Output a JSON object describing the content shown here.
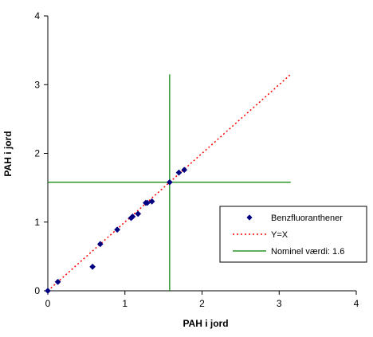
{
  "chart_data": {
    "type": "scatter",
    "xlabel": "PAH i jord",
    "ylabel": "PAH i jord",
    "xlim": [
      0,
      4
    ],
    "ylim": [
      0,
      4
    ],
    "x_ticks": [
      "0",
      "1",
      "2",
      "3",
      "4"
    ],
    "y_ticks": [
      "0",
      "1",
      "2",
      "3",
      "4"
    ],
    "grid": false,
    "legend_position": "bottom-right",
    "series": [
      {
        "name": "Benzfluoranthener",
        "kind": "scatter",
        "marker": "diamond",
        "color": "#000080",
        "points": [
          [
            0.0,
            0.0
          ],
          [
            0.13,
            0.13
          ],
          [
            0.58,
            0.35
          ],
          [
            0.68,
            0.68
          ],
          [
            0.9,
            0.89
          ],
          [
            1.08,
            1.06
          ],
          [
            1.1,
            1.08
          ],
          [
            1.17,
            1.12
          ],
          [
            1.27,
            1.28
          ],
          [
            1.29,
            1.28
          ],
          [
            1.35,
            1.3
          ],
          [
            1.58,
            1.58
          ],
          [
            1.7,
            1.72
          ],
          [
            1.77,
            1.76
          ]
        ]
      },
      {
        "name": "Y=X",
        "kind": "line",
        "style": "dotted",
        "color": "#ff0000",
        "points": [
          [
            0,
            0
          ],
          [
            3.15,
            3.15
          ]
        ]
      },
      {
        "name": "Nominel værdi:  1.6",
        "kind": "crosshair",
        "color": "#008000",
        "value": 1.58,
        "span": [
          0,
          3.15
        ]
      }
    ]
  }
}
